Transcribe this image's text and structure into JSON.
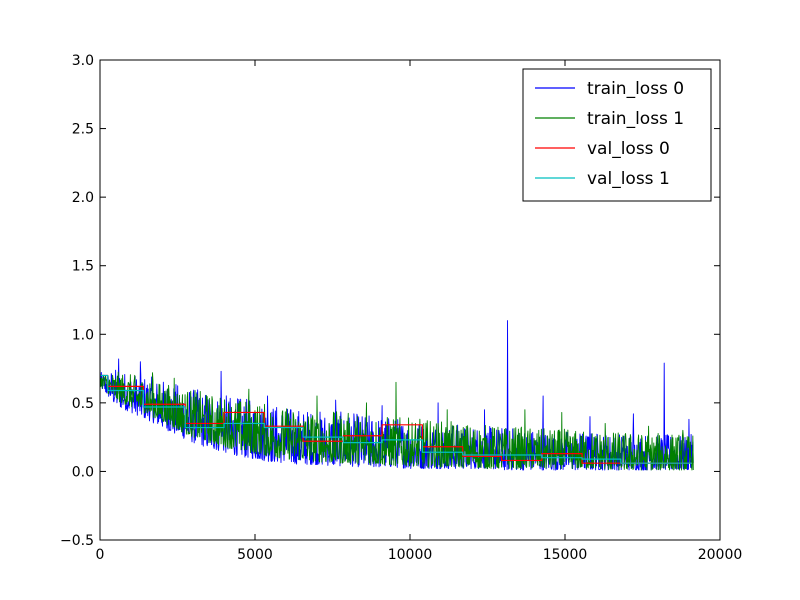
{
  "chart_data": {
    "type": "line",
    "title": "",
    "xlabel": "",
    "ylabel": "",
    "xlim": [
      0,
      20000
    ],
    "ylim": [
      -0.5,
      3.0
    ],
    "x_ticks": [
      0,
      5000,
      10000,
      15000,
      20000
    ],
    "x_tick_labels": [
      "0",
      "5000",
      "10000",
      "15000",
      "20000"
    ],
    "y_ticks": [
      -0.5,
      0.0,
      0.5,
      1.0,
      1.5,
      2.0,
      2.5,
      3.0
    ],
    "y_tick_labels": [
      "−0.5",
      "0.0",
      "0.5",
      "1.0",
      "1.5",
      "2.0",
      "2.5",
      "3.0"
    ],
    "grid": false,
    "legend": {
      "position": "top-right"
    },
    "series": [
      {
        "name": "train_loss 0",
        "color": "#0000ff",
        "kind": "noisy",
        "x": [
          0,
          500,
          1000,
          1500,
          2000,
          2500,
          3000,
          3500,
          4000,
          4500,
          5000,
          5500,
          6000,
          6500,
          7000,
          7500,
          8000,
          8500,
          9000,
          9500,
          10000,
          10500,
          11000,
          11500,
          12000,
          12500,
          13000,
          13500,
          14000,
          14500,
          15000,
          15500,
          16000,
          16500,
          17000,
          17500,
          18000,
          18500,
          19000,
          19150
        ],
        "low": [
          0.62,
          0.48,
          0.43,
          0.38,
          0.32,
          0.26,
          0.21,
          0.17,
          0.14,
          0.11,
          0.09,
          0.07,
          0.06,
          0.05,
          0.05,
          0.04,
          0.04,
          0.03,
          0.03,
          0.03,
          0.02,
          0.02,
          0.02,
          0.02,
          0.02,
          0.02,
          0.01,
          0.01,
          0.01,
          0.01,
          0.01,
          0.01,
          0.01,
          0.01,
          0.01,
          0.01,
          0.01,
          0.01,
          0.01,
          0.01
        ],
        "high": [
          0.72,
          0.75,
          0.72,
          0.7,
          0.67,
          0.64,
          0.61,
          0.58,
          0.56,
          0.54,
          0.52,
          0.5,
          0.48,
          0.46,
          0.45,
          0.44,
          0.43,
          0.42,
          0.41,
          0.4,
          0.38,
          0.37,
          0.36,
          0.35,
          0.34,
          0.33,
          0.33,
          0.32,
          0.31,
          0.3,
          0.3,
          0.29,
          0.29,
          0.28,
          0.28,
          0.28,
          0.27,
          0.27,
          0.27,
          0.27
        ],
        "spikes": [
          [
            600,
            0.82
          ],
          [
            1300,
            0.8
          ],
          [
            3900,
            0.73
          ],
          [
            5400,
            0.55
          ],
          [
            7600,
            0.52
          ],
          [
            9100,
            0.48
          ],
          [
            10900,
            0.5
          ],
          [
            12400,
            0.45
          ],
          [
            13150,
            1.1
          ],
          [
            14300,
            0.55
          ],
          [
            15800,
            0.4
          ],
          [
            17200,
            0.42
          ],
          [
            18200,
            0.79
          ],
          [
            19000,
            0.38
          ]
        ]
      },
      {
        "name": "train_loss 1",
        "color": "#008000",
        "kind": "noisy",
        "x": [
          0,
          500,
          1000,
          1500,
          2000,
          2500,
          3000,
          3500,
          4000,
          4500,
          5000,
          5500,
          6000,
          6500,
          7000,
          7500,
          8000,
          8500,
          9000,
          9500,
          10000,
          10500,
          11000,
          11500,
          12000,
          12500,
          13000,
          13500,
          14000,
          14500,
          15000,
          15500,
          16000,
          16500,
          17000,
          17500,
          18000,
          18500,
          19000,
          19150
        ],
        "low": [
          0.62,
          0.52,
          0.47,
          0.42,
          0.36,
          0.3,
          0.25,
          0.21,
          0.18,
          0.15,
          0.13,
          0.11,
          0.09,
          0.08,
          0.07,
          0.06,
          0.06,
          0.05,
          0.05,
          0.04,
          0.04,
          0.03,
          0.03,
          0.03,
          0.03,
          0.02,
          0.02,
          0.02,
          0.02,
          0.02,
          0.02,
          0.02,
          0.02,
          0.01,
          0.01,
          0.01,
          0.01,
          0.01,
          0.01,
          0.01
        ],
        "high": [
          0.72,
          0.73,
          0.71,
          0.68,
          0.65,
          0.62,
          0.6,
          0.57,
          0.55,
          0.53,
          0.51,
          0.49,
          0.47,
          0.46,
          0.45,
          0.44,
          0.43,
          0.42,
          0.41,
          0.4,
          0.39,
          0.38,
          0.37,
          0.36,
          0.35,
          0.34,
          0.33,
          0.33,
          0.32,
          0.31,
          0.31,
          0.3,
          0.3,
          0.29,
          0.29,
          0.28,
          0.28,
          0.28,
          0.27,
          0.27
        ],
        "spikes": [
          [
            1700,
            0.72
          ],
          [
            2400,
            0.68
          ],
          [
            4800,
            0.6
          ],
          [
            7000,
            0.55
          ],
          [
            8600,
            0.5
          ],
          [
            9550,
            0.65
          ],
          [
            11200,
            0.45
          ],
          [
            13700,
            0.45
          ],
          [
            14900,
            0.43
          ],
          [
            16300,
            0.35
          ],
          [
            17700,
            0.33
          ],
          [
            18800,
            0.3
          ]
        ]
      },
      {
        "name": "val_loss 0",
        "color": "#ff0000",
        "kind": "step",
        "x": [
          0,
          250,
          1400,
          2750,
          4000,
          5300,
          6550,
          7850,
          9100,
          10400,
          11700,
          12950,
          14250,
          15550,
          16800,
          18200
        ],
        "y": [
          0.7,
          0.62,
          0.49,
          0.35,
          0.43,
          0.33,
          0.22,
          0.26,
          0.34,
          0.18,
          0.11,
          0.08,
          0.13,
          0.06,
          0.06,
          0.06
        ]
      },
      {
        "name": "val_loss 1",
        "color": "#00bfbf",
        "kind": "step",
        "x": [
          0,
          250,
          1400,
          2750,
          4000,
          5300,
          6550,
          7850,
          9100,
          10400,
          11700,
          12950,
          14250,
          15550,
          16800,
          18200
        ],
        "y": [
          0.7,
          0.59,
          0.47,
          0.32,
          0.35,
          0.32,
          0.25,
          0.21,
          0.23,
          0.14,
          0.12,
          0.12,
          0.1,
          0.09,
          0.06,
          0.06
        ]
      }
    ]
  }
}
